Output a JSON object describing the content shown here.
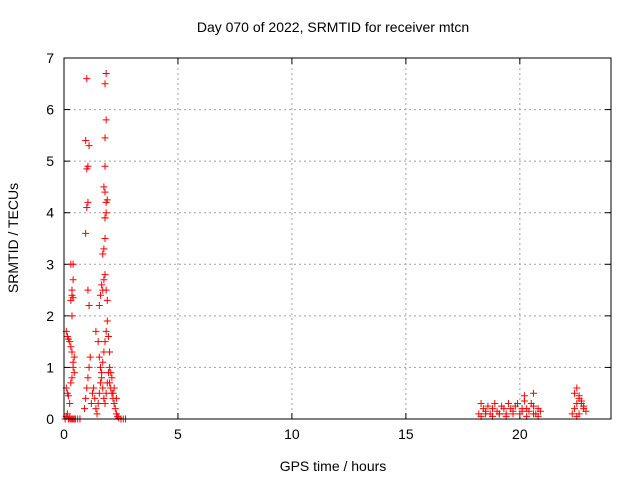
{
  "chart_data": {
    "type": "scatter",
    "title": "Day 070 of 2022, SRMTID for receiver mtcn",
    "xlabel": "GPS time / hours",
    "ylabel": "SRMTID / TECUs",
    "xlim": [
      0,
      24
    ],
    "ylim": [
      0,
      7
    ],
    "xticks": [
      0,
      5,
      10,
      15,
      20
    ],
    "yticks": [
      0,
      1,
      2,
      3,
      4,
      5,
      6,
      7
    ],
    "grid": true,
    "marker": "+",
    "color": "#ff0000",
    "series": [
      {
        "name": "SRMTID",
        "x": [
          0.05,
          0.1,
          0.15,
          0.2,
          0.25,
          0.3,
          0.35,
          0.4,
          0.45,
          0.5,
          0.6,
          0.7,
          0.1,
          0.15,
          0.2,
          0.25,
          0.3,
          0.35,
          0.4,
          0.45,
          0.1,
          0.15,
          0.2,
          0.25,
          0.3,
          0.35,
          0.4,
          0.45,
          0.3,
          0.35,
          0.4,
          0.35,
          0.4,
          0.3,
          0.4,
          0.35,
          0.9,
          0.95,
          1.0,
          1.05,
          1.1,
          1.15,
          0.95,
          1.0,
          1.05,
          1.0,
          1.05,
          1.1,
          0.95,
          1.0,
          1.05,
          1.1,
          1.2,
          1.25,
          1.3,
          1.35,
          1.4,
          1.45,
          1.5,
          1.55,
          1.6,
          1.65,
          1.7,
          1.75,
          1.8,
          1.85,
          1.9,
          1.95,
          2.0,
          1.4,
          1.5,
          1.55,
          1.6,
          1.65,
          1.7,
          1.75,
          1.8,
          1.85,
          1.9,
          1.95,
          2.0,
          1.55,
          1.6,
          1.65,
          1.7,
          1.75,
          1.8,
          1.85,
          1.9,
          1.7,
          1.75,
          1.8,
          1.85,
          1.9,
          1.75,
          1.8,
          1.8,
          1.85,
          1.8,
          1.85,
          1.8,
          1.8,
          1.8,
          1.85,
          2.0,
          2.05,
          2.1,
          2.15,
          2.2,
          2.25,
          2.3,
          2.35,
          2.4,
          2.5,
          2.6,
          2.7,
          2.1,
          2.2,
          2.3,
          2.05,
          2.15,
          18.2,
          18.3,
          18.4,
          18.5,
          18.6,
          18.7,
          18.8,
          18.9,
          19.0,
          19.1,
          19.2,
          19.3,
          19.4,
          19.5,
          19.6,
          19.7,
          19.8,
          19.9,
          20.0,
          20.1,
          20.2,
          20.3,
          20.4,
          20.5,
          20.6,
          20.7,
          20.8,
          20.9,
          18.3,
          18.5,
          18.8,
          19.1,
          19.4,
          19.7,
          20.1,
          20.3,
          20.6,
          20.8,
          20.2,
          20.6,
          22.3,
          22.4,
          22.5,
          22.6,
          22.7,
          22.8,
          22.9,
          22.4,
          22.5,
          22.6,
          22.7,
          22.8,
          22.5,
          22.6
        ],
        "y": [
          0.0,
          0.05,
          0.1,
          0.0,
          0.02,
          0.0,
          0.0,
          0.0,
          0.0,
          0.0,
          0.0,
          0.0,
          1.7,
          1.6,
          1.55,
          1.5,
          1.4,
          1.3,
          1.1,
          0.9,
          0.6,
          0.5,
          0.45,
          0.3,
          0.7,
          0.8,
          1.0,
          1.2,
          2.3,
          2.4,
          2.35,
          2.0,
          2.7,
          3.0,
          3.0,
          2.5,
          0.2,
          0.4,
          0.6,
          0.8,
          1.0,
          1.2,
          3.6,
          4.1,
          4.2,
          4.85,
          4.9,
          5.3,
          5.4,
          6.6,
          2.5,
          2.2,
          0.3,
          0.5,
          0.6,
          0.4,
          0.2,
          0.1,
          0.3,
          0.5,
          0.7,
          0.9,
          1.1,
          1.3,
          1.5,
          1.7,
          1.9,
          1.6,
          1.3,
          1.7,
          1.5,
          1.2,
          1.0,
          0.8,
          0.6,
          0.4,
          0.3,
          0.5,
          0.7,
          0.9,
          1.0,
          2.2,
          2.4,
          2.6,
          2.5,
          2.7,
          2.8,
          2.5,
          2.3,
          3.2,
          3.3,
          3.9,
          4.0,
          4.25,
          4.5,
          4.9,
          5.45,
          5.8,
          6.5,
          6.7,
          4.4,
          3.5,
          3.9,
          4.2,
          0.7,
          0.6,
          0.5,
          0.4,
          0.3,
          0.2,
          0.1,
          0.05,
          0.02,
          0.0,
          0.0,
          0.0,
          0.8,
          0.6,
          0.4,
          0.9,
          0.5,
          0.1,
          0.3,
          0.2,
          0.15,
          0.25,
          0.1,
          0.2,
          0.3,
          0.15,
          0.1,
          0.25,
          0.2,
          0.1,
          0.3,
          0.2,
          0.15,
          0.25,
          0.3,
          0.1,
          0.2,
          0.35,
          0.2,
          0.15,
          0.3,
          0.25,
          0.1,
          0.2,
          0.15,
          0.05,
          0.1,
          0.05,
          0.1,
          0.05,
          0.1,
          0.15,
          0.05,
          0.1,
          0.05,
          0.45,
          0.5,
          0.1,
          0.2,
          0.3,
          0.4,
          0.3,
          0.2,
          0.15,
          0.5,
          0.6,
          0.45,
          0.35,
          0.25,
          0.05,
          0.1
        ]
      }
    ]
  }
}
